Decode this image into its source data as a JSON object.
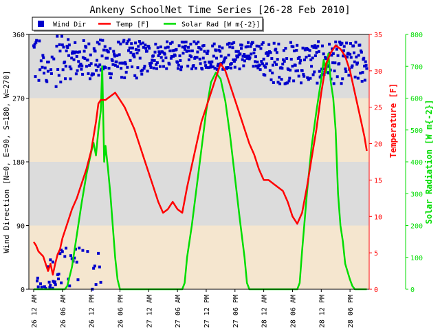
{
  "chart_data": {
    "type": "line",
    "title": "Ankeny SchoolNet Time Series [26-28 Feb 2010]",
    "colors": {
      "wind": "#0000cc",
      "temp": "#ff0000",
      "solar": "#00dd00",
      "band_gray": "#dcdcdc",
      "band_tan": "#f5e6cf"
    },
    "left_axis": {
      "label": "Wind Direction [N=0, E=90, S=180, W=270]",
      "ylim": [
        0,
        360
      ],
      "ticks": [
        0,
        90,
        180,
        270,
        360
      ]
    },
    "right_axis_1": {
      "label": "Temperature [F]",
      "ylim": [
        0,
        35
      ],
      "ticks": [
        0,
        5,
        10,
        15,
        20,
        25,
        30,
        35
      ]
    },
    "right_axis_2": {
      "label": "Solar Radiation [W m{-2}]",
      "ylim": [
        0,
        800
      ],
      "ticks": [
        0,
        100,
        200,
        300,
        400,
        500,
        600,
        700,
        800
      ]
    },
    "x_axis": {
      "xlim_hours": [
        -1,
        70
      ],
      "ticks": [
        {
          "h": 0,
          "label": "26 12 AM"
        },
        {
          "h": 6,
          "label": "26 06 AM"
        },
        {
          "h": 12,
          "label": "26 12 PM"
        },
        {
          "h": 18,
          "label": "26 06 PM"
        },
        {
          "h": 24,
          "label": "27 12 AM"
        },
        {
          "h": 30,
          "label": "27 06 AM"
        },
        {
          "h": 36,
          "label": "27 12 PM"
        },
        {
          "h": 42,
          "label": "27 06 PM"
        },
        {
          "h": 48,
          "label": "28 12 AM"
        },
        {
          "h": 54,
          "label": "28 06 AM"
        },
        {
          "h": 60,
          "label": "28 12 PM"
        },
        {
          "h": 66,
          "label": "28 06 PM"
        }
      ]
    },
    "legend": {
      "placement": "top-left",
      "items": [
        {
          "key": "wind",
          "label": "Wind Dir"
        },
        {
          "key": "temp",
          "label": "Temp [F]"
        },
        {
          "key": "solar",
          "label": "Solar Rad [W m{-2}]"
        }
      ]
    },
    "series": [
      {
        "name": "Temp [F]",
        "axis": "temperature",
        "points": [
          [
            0,
            6.5
          ],
          [
            0.5,
            6.0
          ],
          [
            1,
            5.2
          ],
          [
            2,
            4.5
          ],
          [
            2.5,
            3.5
          ],
          [
            3,
            2.5
          ],
          [
            3.5,
            3.5
          ],
          [
            4,
            2.0
          ],
          [
            4.5,
            3.5
          ],
          [
            5,
            4.8
          ],
          [
            5.5,
            5.5
          ],
          [
            6,
            7.0
          ],
          [
            7,
            9.0
          ],
          [
            8,
            11.0
          ],
          [
            9,
            12.5
          ],
          [
            10,
            14.5
          ],
          [
            11,
            16.5
          ],
          [
            12,
            19.0
          ],
          [
            12.5,
            21.0
          ],
          [
            13,
            23.0
          ],
          [
            13.5,
            25.5
          ],
          [
            14,
            26.0
          ],
          [
            15,
            26.0
          ],
          [
            16,
            26.5
          ],
          [
            17,
            27.0
          ],
          [
            18,
            26.0
          ],
          [
            19,
            25.0
          ],
          [
            20,
            23.5
          ],
          [
            21,
            22.0
          ],
          [
            22,
            20.0
          ],
          [
            23,
            18.0
          ],
          [
            24,
            16.0
          ],
          [
            25,
            14.0
          ],
          [
            26,
            12.0
          ],
          [
            27,
            10.5
          ],
          [
            28,
            11.0
          ],
          [
            29,
            12.0
          ],
          [
            30,
            11.0
          ],
          [
            31,
            10.5
          ],
          [
            32,
            14.0
          ],
          [
            33,
            17.0
          ],
          [
            34,
            20.0
          ],
          [
            35,
            23.0
          ],
          [
            36,
            25.0
          ],
          [
            37,
            27.0
          ],
          [
            38,
            29.0
          ],
          [
            39,
            31.0
          ],
          [
            40,
            30.0
          ],
          [
            41,
            28.0
          ],
          [
            42,
            26.0
          ],
          [
            43,
            24.0
          ],
          [
            44,
            22.0
          ],
          [
            45,
            20.0
          ],
          [
            46,
            18.5
          ],
          [
            47,
            16.5
          ],
          [
            48,
            15.0
          ],
          [
            49,
            15.0
          ],
          [
            50,
            14.5
          ],
          [
            51,
            14.0
          ],
          [
            52,
            13.5
          ],
          [
            53,
            12.0
          ],
          [
            54,
            10.0
          ],
          [
            55,
            9.0
          ],
          [
            56,
            10.5
          ],
          [
            57,
            14.0
          ],
          [
            58,
            18.0
          ],
          [
            59,
            22.0
          ],
          [
            60,
            27.0
          ],
          [
            61,
            31.0
          ],
          [
            62,
            32.5
          ],
          [
            63,
            33.5
          ],
          [
            64,
            33.0
          ],
          [
            65,
            32.0
          ],
          [
            66,
            30.0
          ],
          [
            67,
            27.0
          ],
          [
            68,
            24.0
          ],
          [
            69,
            21.0
          ],
          [
            69.5,
            19.0
          ]
        ]
      },
      {
        "name": "Solar Rad [W m{-2}]",
        "axis": "solar",
        "points": [
          [
            0,
            0
          ],
          [
            6.5,
            0
          ],
          [
            7,
            10
          ],
          [
            8,
            70
          ],
          [
            9,
            170
          ],
          [
            10,
            270
          ],
          [
            11,
            360
          ],
          [
            12,
            430
          ],
          [
            12.5,
            460
          ],
          [
            13,
            420
          ],
          [
            13.5,
            500
          ],
          [
            14,
            560
          ],
          [
            14.3,
            700
          ],
          [
            14.7,
            400
          ],
          [
            15,
            450
          ],
          [
            15.5,
            380
          ],
          [
            16,
            300
          ],
          [
            16.5,
            200
          ],
          [
            17,
            100
          ],
          [
            17.5,
            30
          ],
          [
            18,
            0
          ],
          [
            31,
            0
          ],
          [
            31.5,
            20
          ],
          [
            32,
            100
          ],
          [
            33,
            200
          ],
          [
            34,
            320
          ],
          [
            35,
            440
          ],
          [
            36,
            560
          ],
          [
            37,
            650
          ],
          [
            38,
            680
          ],
          [
            39,
            660
          ],
          [
            40,
            590
          ],
          [
            41,
            480
          ],
          [
            42,
            350
          ],
          [
            43,
            220
          ],
          [
            44,
            100
          ],
          [
            44.5,
            20
          ],
          [
            45,
            0
          ],
          [
            55,
            0
          ],
          [
            55.5,
            20
          ],
          [
            56,
            120
          ],
          [
            57,
            300
          ],
          [
            58,
            450
          ],
          [
            59,
            560
          ],
          [
            60,
            660
          ],
          [
            60.5,
            720
          ],
          [
            61,
            680
          ],
          [
            61.5,
            740
          ],
          [
            62,
            650
          ],
          [
            62.5,
            600
          ],
          [
            63,
            500
          ],
          [
            63.5,
            300
          ],
          [
            64,
            200
          ],
          [
            64.5,
            150
          ],
          [
            65,
            80
          ],
          [
            66,
            30
          ],
          [
            66.5,
            10
          ],
          [
            67,
            0
          ],
          [
            69.5,
            0
          ]
        ]
      }
    ],
    "wind_dir_pattern": [
      {
        "from": 0,
        "to": 6,
        "center": 330,
        "spread": 45,
        "low": true
      },
      {
        "from": 6,
        "to": 24,
        "center": 325,
        "spread": 28
      },
      {
        "from": 24,
        "to": 48,
        "center": 330,
        "spread": 20
      },
      {
        "from": 48,
        "to": 69.5,
        "center": 320,
        "spread": 30
      }
    ]
  }
}
